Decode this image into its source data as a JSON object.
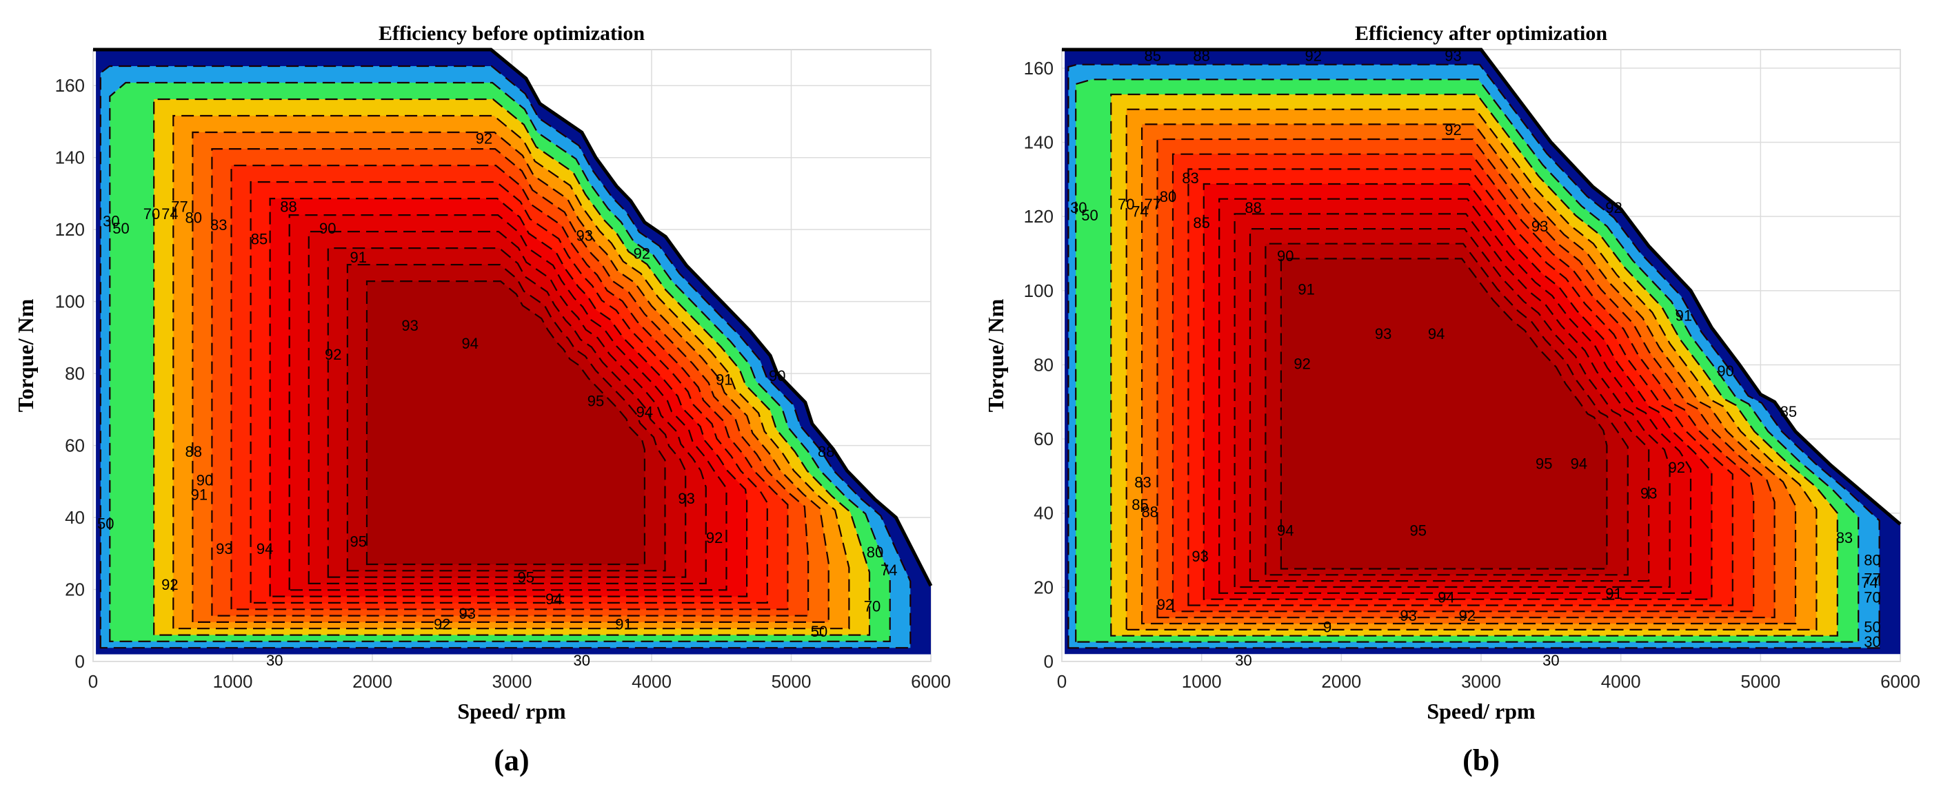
{
  "chart_data": [
    {
      "type": "contour",
      "panel_label": "(a)",
      "title": "Efficiency before optimization",
      "xlabel": "Speed/ rpm",
      "ylabel": "Torque/ Nm",
      "xlim": [
        0,
        6000
      ],
      "ylim": [
        0,
        170
      ],
      "xticks": [
        "0",
        "1000",
        "2000",
        "3000",
        "4000",
        "5000",
        "6000"
      ],
      "yticks": [
        "0",
        "20",
        "40",
        "60",
        "80",
        "100",
        "120",
        "140",
        "160"
      ],
      "grid": true,
      "torque_envelope": {
        "speed": [
          0,
          2850,
          3100,
          3200,
          3500,
          3600,
          3750,
          3850,
          3950,
          4100,
          4250,
          4450,
          4500,
          4700,
          4850,
          4900,
          5000,
          5100,
          5150,
          5300,
          5400,
          5600,
          5750,
          6000
        ],
        "torque": [
          170,
          170,
          162,
          155,
          147,
          140,
          132,
          128,
          122,
          118,
          110,
          102,
          100,
          92,
          85,
          80,
          76,
          72,
          66,
          59,
          53,
          45,
          40,
          21
        ]
      },
      "efficiency_levels": [
        30,
        50,
        70,
        74,
        77,
        80,
        83,
        85,
        88,
        90,
        91,
        92,
        93,
        94,
        95
      ],
      "peak_efficiency_region": {
        "speed_range": [
          2000,
          3950
        ],
        "torque_range": [
          27,
          79
        ],
        "efficiency": 95
      },
      "contour_labels": [
        {
          "text": "92",
          "speed": 2800,
          "torque": 145
        },
        {
          "text": "93",
          "speed": 3520,
          "torque": 118
        },
        {
          "text": "92",
          "speed": 3930,
          "torque": 113
        },
        {
          "text": "88",
          "speed": 1400,
          "torque": 126
        },
        {
          "text": "90",
          "speed": 1680,
          "torque": 120
        },
        {
          "text": "91",
          "speed": 1900,
          "torque": 112
        },
        {
          "text": "93",
          "speed": 2270,
          "torque": 93
        },
        {
          "text": "94",
          "speed": 2700,
          "torque": 88
        },
        {
          "text": "92",
          "speed": 1720,
          "torque": 85
        },
        {
          "text": "95",
          "speed": 3600,
          "torque": 72
        },
        {
          "text": "94",
          "speed": 3950,
          "torque": 69
        },
        {
          "text": "93",
          "speed": 4250,
          "torque": 45
        },
        {
          "text": "92",
          "speed": 4450,
          "torque": 34
        },
        {
          "text": "91",
          "speed": 4520,
          "torque": 78
        },
        {
          "text": "90",
          "speed": 4900,
          "torque": 79
        },
        {
          "text": "88",
          "speed": 5250,
          "torque": 58
        },
        {
          "text": "95",
          "speed": 1900,
          "torque": 33
        },
        {
          "text": "95",
          "speed": 3100,
          "torque": 23
        },
        {
          "text": "94",
          "speed": 3300,
          "torque": 17
        },
        {
          "text": "93",
          "speed": 2680,
          "torque": 13
        },
        {
          "text": "92",
          "speed": 2500,
          "torque": 10
        },
        {
          "text": "91",
          "speed": 3800,
          "torque": 10
        },
        {
          "text": "94",
          "speed": 1230,
          "torque": 31
        },
        {
          "text": "93",
          "speed": 940,
          "torque": 31
        },
        {
          "text": "92",
          "speed": 550,
          "torque": 21
        },
        {
          "text": "91",
          "speed": 760,
          "torque": 46
        },
        {
          "text": "90",
          "speed": 800,
          "torque": 50
        },
        {
          "text": "88",
          "speed": 720,
          "torque": 58
        },
        {
          "text": "85",
          "speed": 1190,
          "torque": 117
        },
        {
          "text": "83",
          "speed": 900,
          "torque": 121
        },
        {
          "text": "80",
          "speed": 720,
          "torque": 123
        },
        {
          "text": "77",
          "speed": 620,
          "torque": 126
        },
        {
          "text": "74",
          "speed": 550,
          "torque": 124
        },
        {
          "text": "70",
          "speed": 420,
          "torque": 124
        },
        {
          "text": "50",
          "speed": 200,
          "torque": 120
        },
        {
          "text": "30",
          "speed": 130,
          "torque": 122
        },
        {
          "text": "50",
          "speed": 90,
          "torque": 38
        },
        {
          "text": "30",
          "speed": 1300,
          "torque": 0
        },
        {
          "text": "80",
          "speed": 5600,
          "torque": 30
        },
        {
          "text": "74",
          "speed": 5700,
          "torque": 25
        },
        {
          "text": "70",
          "speed": 5580,
          "torque": 15
        },
        {
          "text": "50",
          "speed": 5200,
          "torque": 8
        },
        {
          "text": "30",
          "speed": 3500,
          "torque": 0
        }
      ]
    },
    {
      "type": "contour",
      "panel_label": "(b)",
      "title": "Efficiency after optimization",
      "xlabel": "Speed/ rpm",
      "ylabel": "Torque/ Nm",
      "xlim": [
        0,
        6000
      ],
      "ylim": [
        0,
        165
      ],
      "xticks": [
        "0",
        "1000",
        "2000",
        "3000",
        "4000",
        "5000",
        "6000"
      ],
      "yticks": [
        "0",
        "20",
        "40",
        "60",
        "80",
        "100",
        "120",
        "140",
        "160"
      ],
      "grid": true,
      "torque_envelope": {
        "speed": [
          0,
          3000,
          3200,
          3500,
          3800,
          4000,
          4200,
          4500,
          4650,
          4850,
          5000,
          5100,
          5250,
          5500,
          5750,
          6000
        ],
        "torque": [
          165,
          165,
          155,
          140,
          128,
          122,
          112,
          100,
          90,
          80,
          72,
          70,
          62,
          53,
          45,
          37
        ]
      },
      "efficiency_levels": [
        30,
        50,
        70,
        74,
        77,
        80,
        83,
        85,
        88,
        90,
        91,
        92,
        93,
        94,
        95
      ],
      "peak_efficiency_region": {
        "speed_range": [
          1600,
          3900
        ],
        "torque_range": [
          25,
          100
        ],
        "efficiency": 95
      },
      "contour_labels": [
        {
          "text": "85",
          "speed": 650,
          "torque": 163
        },
        {
          "text": "88",
          "speed": 1000,
          "torque": 163
        },
        {
          "text": "92",
          "speed": 1800,
          "torque": 163
        },
        {
          "text": "93",
          "speed": 2800,
          "torque": 163
        },
        {
          "text": "92",
          "speed": 2800,
          "torque": 143
        },
        {
          "text": "93",
          "speed": 3420,
          "torque": 117
        },
        {
          "text": "92",
          "speed": 3950,
          "torque": 122
        },
        {
          "text": "91",
          "speed": 4450,
          "torque": 93
        },
        {
          "text": "90",
          "speed": 4750,
          "torque": 78
        },
        {
          "text": "85",
          "speed": 5200,
          "torque": 67
        },
        {
          "text": "83",
          "speed": 5600,
          "torque": 33
        },
        {
          "text": "80",
          "speed": 5800,
          "torque": 27
        },
        {
          "text": "77",
          "speed": 5800,
          "torque": 22
        },
        {
          "text": "74",
          "speed": 5780,
          "torque": 21
        },
        {
          "text": "70",
          "speed": 5800,
          "torque": 17
        },
        {
          "text": "50",
          "speed": 5800,
          "torque": 9
        },
        {
          "text": "30",
          "speed": 5800,
          "torque": 5
        },
        {
          "text": "88",
          "speed": 1370,
          "torque": 122
        },
        {
          "text": "90",
          "speed": 1600,
          "torque": 109
        },
        {
          "text": "91",
          "speed": 1750,
          "torque": 100
        },
        {
          "text": "93",
          "speed": 2300,
          "torque": 88
        },
        {
          "text": "94",
          "speed": 2680,
          "torque": 88
        },
        {
          "text": "92",
          "speed": 1720,
          "torque": 80
        },
        {
          "text": "85",
          "speed": 1000,
          "torque": 118
        },
        {
          "text": "83",
          "speed": 920,
          "torque": 130
        },
        {
          "text": "80",
          "speed": 760,
          "torque": 125
        },
        {
          "text": "77",
          "speed": 650,
          "torque": 123
        },
        {
          "text": "74",
          "speed": 560,
          "torque": 121
        },
        {
          "text": "70",
          "speed": 460,
          "torque": 123
        },
        {
          "text": "50",
          "speed": 200,
          "torque": 120
        },
        {
          "text": "30",
          "speed": 120,
          "torque": 122
        },
        {
          "text": "95",
          "speed": 3450,
          "torque": 53
        },
        {
          "text": "94",
          "speed": 3700,
          "torque": 53
        },
        {
          "text": "93",
          "speed": 4200,
          "torque": 45
        },
        {
          "text": "92",
          "speed": 4400,
          "torque": 52
        },
        {
          "text": "95",
          "speed": 2550,
          "torque": 35
        },
        {
          "text": "94",
          "speed": 1600,
          "torque": 35
        },
        {
          "text": "93",
          "speed": 990,
          "torque": 28
        },
        {
          "text": "92",
          "speed": 740,
          "torque": 15
        },
        {
          "text": "94",
          "speed": 2750,
          "torque": 17
        },
        {
          "text": "93",
          "speed": 2480,
          "torque": 12
        },
        {
          "text": "92",
          "speed": 2900,
          "torque": 12
        },
        {
          "text": "91",
          "speed": 3950,
          "torque": 18
        },
        {
          "text": "9",
          "speed": 1900,
          "torque": 9
        },
        {
          "text": "88",
          "speed": 630,
          "torque": 40
        },
        {
          "text": "85",
          "speed": 560,
          "torque": 42
        },
        {
          "text": "83",
          "speed": 580,
          "torque": 48
        },
        {
          "text": "30",
          "speed": 1300,
          "torque": 0
        },
        {
          "text": "30",
          "speed": 3500,
          "torque": 0
        }
      ]
    }
  ],
  "colors": {
    "background": "#ffffff",
    "grid": "#dcdcdc",
    "envelope": "#000000",
    "contour_line": "#1a0000",
    "band_30": "#00108c",
    "band_50": "#1ea0e8",
    "band_70": "#36e85a",
    "band_74": "#f5c700",
    "band_77": "#ff9800",
    "band_80": "#ff6a00",
    "band_83": "#ff4a00",
    "band_85": "#ff2800",
    "band_88": "#ff1800",
    "band_90": "#f00000",
    "band_91": "#e50000",
    "band_92": "#db0000",
    "band_93": "#cc0000",
    "band_94": "#bc0000",
    "band_95": "#a80000"
  }
}
